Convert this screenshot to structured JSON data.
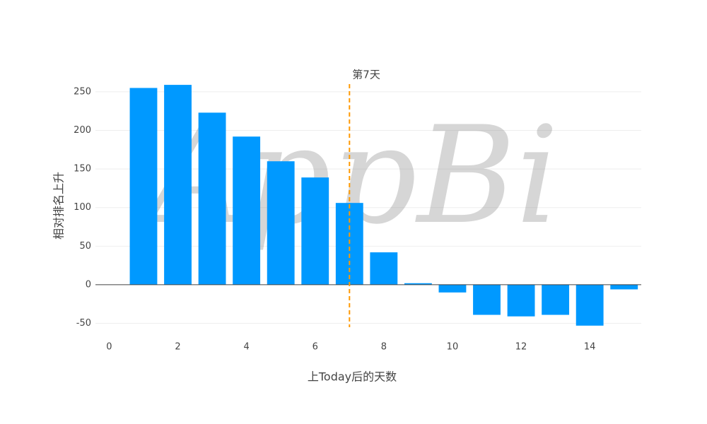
{
  "chart_data": {
    "type": "bar",
    "x": [
      1,
      2,
      3,
      4,
      5,
      6,
      7,
      8,
      9,
      10,
      11,
      12,
      13,
      14,
      15
    ],
    "values": [
      255,
      259,
      223,
      192,
      160,
      139,
      106,
      42,
      2,
      -10,
      -39,
      -41,
      -39,
      -53,
      -6
    ],
    "color": "#0099ff",
    "xlim": [
      -0.4,
      15.5
    ],
    "xticks": [
      0,
      2,
      4,
      6,
      8,
      10,
      12,
      14
    ],
    "ylim": [
      -55,
      260
    ],
    "yticks": [
      -50,
      0,
      50,
      100,
      150,
      200,
      250
    ],
    "grid": true,
    "xlabel": "上Today后的天数",
    "ylabel": "相对排名上升",
    "vline": {
      "x": 7,
      "label": "第7天",
      "color": "#ff9900"
    },
    "watermark": "AppBi"
  }
}
